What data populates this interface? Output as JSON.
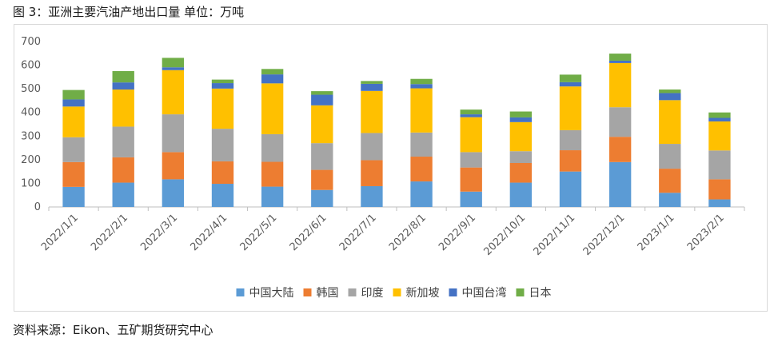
{
  "figure": {
    "title": "图 3：亚洲主要汽油产地出口量 单位：万吨",
    "source": "资料来源：Eikon、五矿期货研究中心"
  },
  "chart_data": {
    "type": "bar",
    "stacked": true,
    "categories": [
      "2022/1/1",
      "2022/2/1",
      "2022/3/1",
      "2022/4/1",
      "2022/5/1",
      "2022/6/1",
      "2022/7/1",
      "2022/8/1",
      "2022/9/1",
      "2022/10/1",
      "2022/11/1",
      "2022/12/1",
      "2023/1/1",
      "2023/2/1"
    ],
    "ylim": [
      0,
      700
    ],
    "yticks": [
      0,
      100,
      200,
      300,
      400,
      500,
      600,
      700
    ],
    "grid": false,
    "legend_position": "bottom",
    "series": [
      {
        "name": "中国大陆",
        "color": "#5b9bd5",
        "values": [
          85,
          103,
          117,
          98,
          86,
          72,
          88,
          108,
          65,
          103,
          150,
          190,
          60,
          32
        ]
      },
      {
        "name": "韩国",
        "color": "#ed7d31",
        "values": [
          105,
          107,
          115,
          95,
          105,
          85,
          110,
          105,
          102,
          83,
          90,
          107,
          102,
          85
        ]
      },
      {
        "name": "印度",
        "color": "#a5a5a5",
        "values": [
          105,
          130,
          160,
          138,
          117,
          113,
          115,
          102,
          65,
          50,
          85,
          125,
          105,
          122
        ]
      },
      {
        "name": "新加坡",
        "color": "#ffc000",
        "values": [
          130,
          157,
          187,
          170,
          215,
          160,
          178,
          187,
          148,
          123,
          185,
          187,
          185,
          123
        ]
      },
      {
        "name": "中国台湾",
        "color": "#4472c4",
        "values": [
          30,
          30,
          12,
          23,
          38,
          45,
          30,
          18,
          12,
          20,
          18,
          10,
          30,
          15
        ]
      },
      {
        "name": "日本",
        "color": "#70ad47",
        "values": [
          40,
          48,
          40,
          15,
          23,
          15,
          12,
          22,
          20,
          25,
          32,
          30,
          15,
          23
        ]
      }
    ]
  }
}
